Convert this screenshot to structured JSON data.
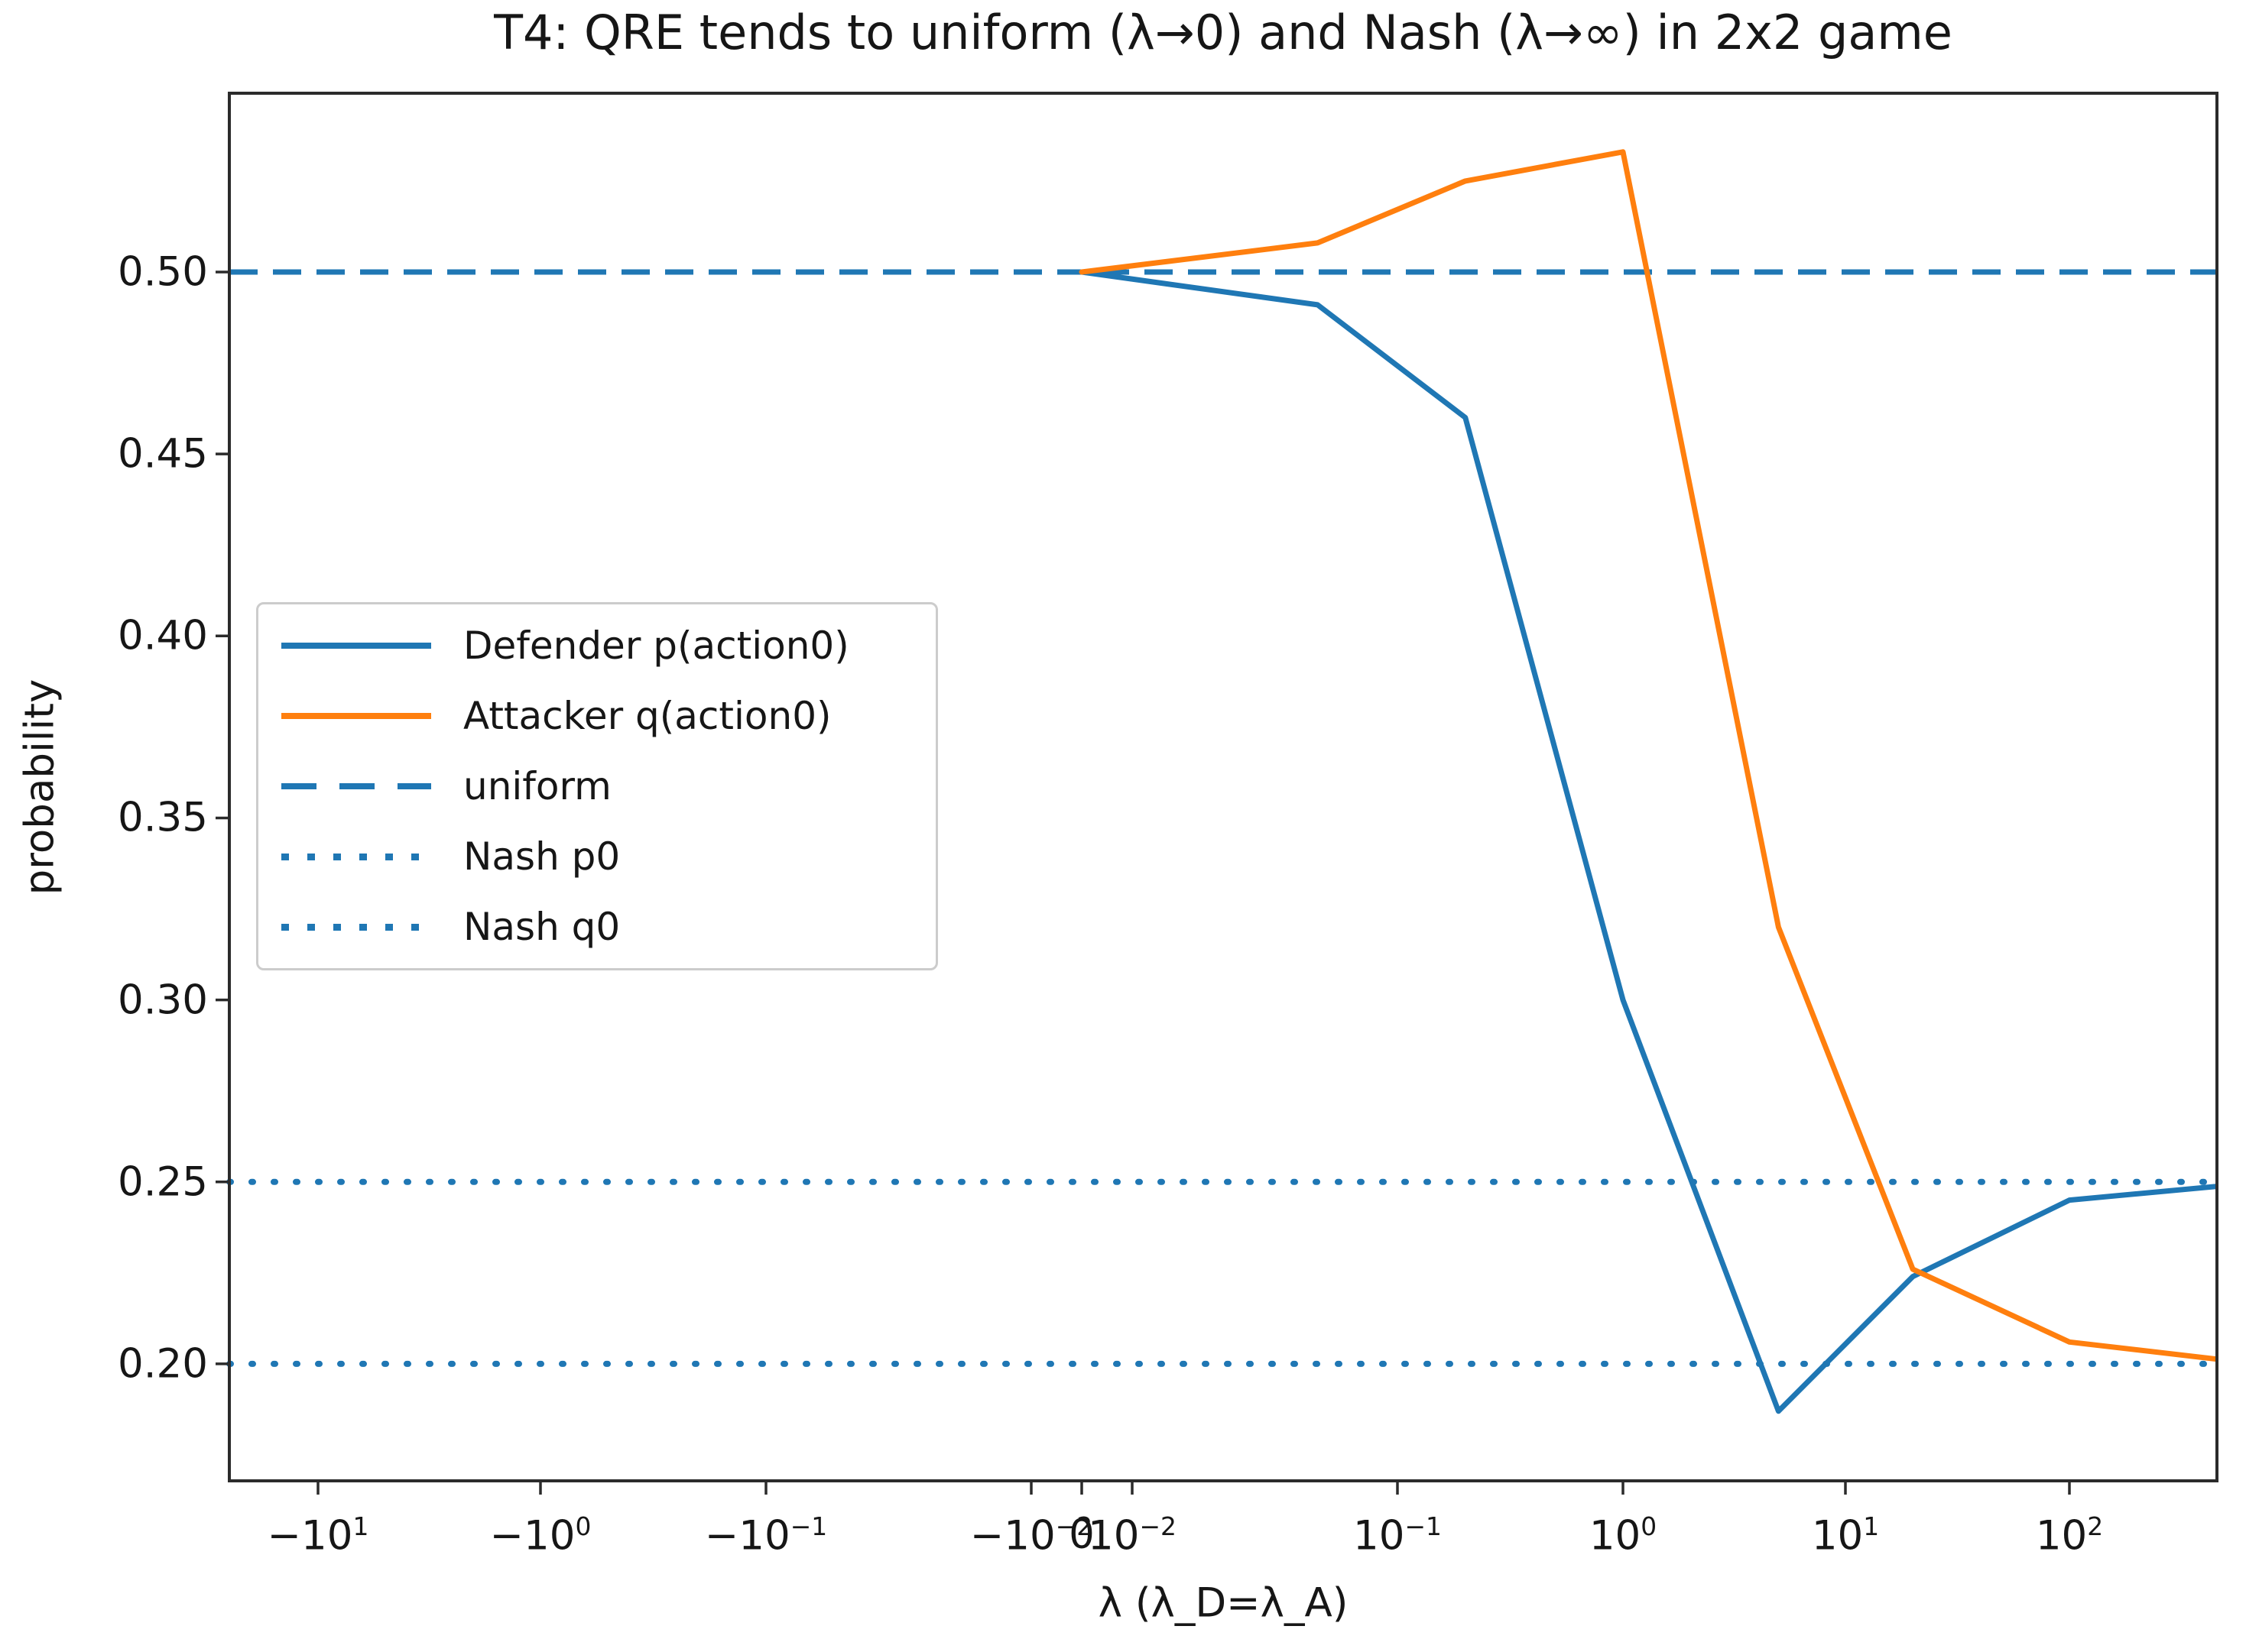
{
  "chart_data": {
    "type": "line",
    "title": "T4: QRE tends to uniform (λ→0) and Nash (λ→∞) in 2x2 game",
    "xlabel": "λ (λ_D=λ_A)",
    "ylabel": "probability",
    "x_scale": "symlog",
    "x_axis_range_note": "symlog axis from about -20 to +500, linear threshold 0.01",
    "ylim": [
      0.168,
      0.552
    ],
    "grid": false,
    "legend_position": "center left",
    "x": [
      0,
      0.05,
      0.2,
      1,
      5,
      20,
      100,
      500
    ],
    "series": [
      {
        "name": "Defender p(action0)",
        "color": "#1f77b4",
        "style": "solid",
        "kind": "data",
        "values": [
          0.5,
          0.491,
          0.46,
          0.3,
          0.187,
          0.224,
          0.245,
          0.249
        ]
      },
      {
        "name": "Attacker q(action0)",
        "color": "#ff7f0e",
        "style": "solid",
        "kind": "data",
        "values": [
          0.5,
          0.508,
          0.525,
          0.533,
          0.32,
          0.226,
          0.206,
          0.201
        ]
      },
      {
        "name": "uniform",
        "color": "#1f77b4",
        "style": "dashed",
        "kind": "reference",
        "value": 0.5
      },
      {
        "name": "Nash p0",
        "color": "#1f77b4",
        "style": "dotted",
        "kind": "reference",
        "value": 0.25
      },
      {
        "name": "Nash q0",
        "color": "#1f77b4",
        "style": "dotted",
        "kind": "reference",
        "value": 0.2
      }
    ],
    "x_ticks": [
      {
        "value": -10,
        "mantissa": "−10",
        "exp": "1"
      },
      {
        "value": -1,
        "mantissa": "−10",
        "exp": "0"
      },
      {
        "value": -0.1,
        "mantissa": "−10",
        "exp": "−1"
      },
      {
        "value": -0.01,
        "mantissa": "−10",
        "exp": "−2"
      },
      {
        "value": 0,
        "mantissa": "0",
        "exp": ""
      },
      {
        "value": 0.01,
        "mantissa": "10",
        "exp": "−2"
      },
      {
        "value": 0.1,
        "mantissa": "10",
        "exp": "−1"
      },
      {
        "value": 1,
        "mantissa": "10",
        "exp": "0"
      },
      {
        "value": 10,
        "mantissa": "10",
        "exp": "1"
      },
      {
        "value": 100,
        "mantissa": "10",
        "exp": "2"
      }
    ],
    "y_ticks": [
      {
        "value": 0.5,
        "label": "0.50"
      },
      {
        "value": 0.45,
        "label": "0.45"
      },
      {
        "value": 0.4,
        "label": "0.40"
      },
      {
        "value": 0.35,
        "label": "0.35"
      },
      {
        "value": 0.3,
        "label": "0.30"
      },
      {
        "value": 0.25,
        "label": "0.25"
      },
      {
        "value": 0.2,
        "label": "0.20"
      }
    ],
    "axis_color": "#2b2b2b"
  }
}
